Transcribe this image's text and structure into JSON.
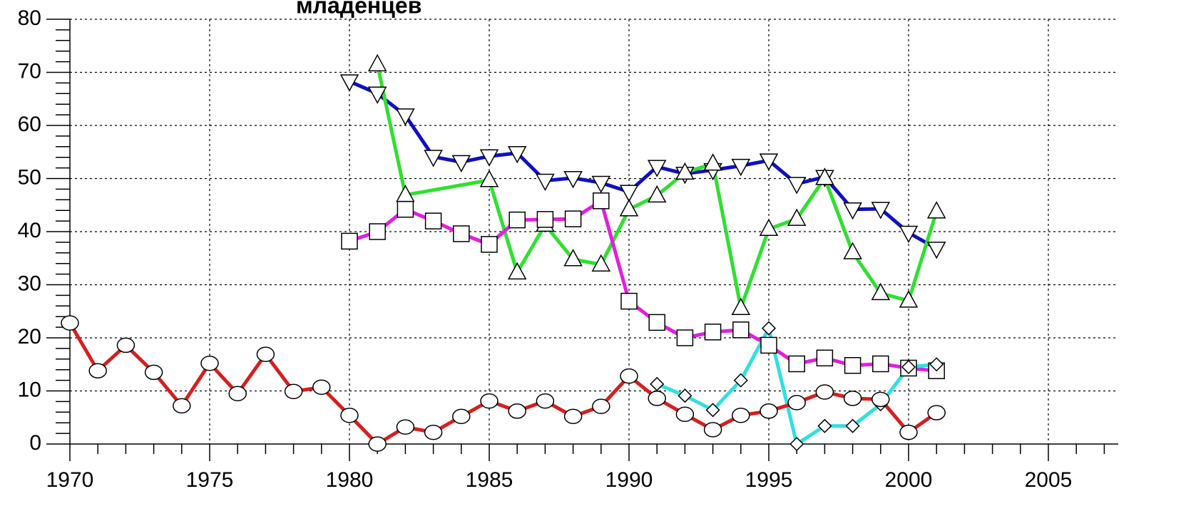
{
  "chart_data": {
    "type": "line",
    "title": "младенцев",
    "xlim": [
      1970,
      2007.5
    ],
    "ylim": [
      0,
      80
    ],
    "xticks": [
      1970,
      1975,
      1980,
      1985,
      1990,
      1995,
      2000,
      2005
    ],
    "yticks": [
      0,
      10,
      20,
      30,
      40,
      50,
      60,
      70,
      80
    ],
    "grid": true,
    "series": [
      {
        "color": "#1010c0",
        "marker": "triangle-down",
        "x": [
          1980,
          1981,
          1982,
          1983,
          1984,
          1985,
          1986,
          1987,
          1988,
          1989,
          1990,
          1991,
          1992,
          1993,
          1994,
          1995,
          1996,
          1997,
          1998,
          1999,
          2000,
          2001
        ],
        "values": [
          68.3,
          66,
          61.9,
          54.1,
          53.1,
          54.2,
          54.8,
          49.6,
          50.1,
          49.2,
          47.5,
          52.2,
          50.9,
          51.6,
          52.4,
          53.4,
          49,
          50.3,
          44.2,
          44.3,
          39.8,
          36.8
        ]
      },
      {
        "color": "#30e030",
        "marker": "triangle-up",
        "x": [
          1981,
          1982,
          1985,
          1986,
          1987,
          1988,
          1989,
          1990,
          1991,
          1992,
          1993,
          1994,
          1995,
          1996,
          1997,
          1998,
          1999,
          2000,
          2001
        ],
        "values": [
          71.5,
          46.9,
          49.7,
          32.3,
          41.3,
          34.8,
          33.8,
          44.2,
          46.8,
          51.1,
          52.8,
          25.6,
          40.5,
          42.4,
          50.1,
          36.1,
          28.4,
          27,
          43.8
        ]
      },
      {
        "color": "#e020e0",
        "marker": "square",
        "x": [
          1980,
          1981,
          1982,
          1983,
          1984,
          1985,
          1986,
          1987,
          1988,
          1989,
          1990,
          1991,
          1992,
          1993,
          1994,
          1995,
          1996,
          1997,
          1998,
          1999,
          2000,
          2001
        ],
        "values": [
          38.2,
          40,
          44.2,
          42,
          39.6,
          37.6,
          42.2,
          42.3,
          42.4,
          45.8,
          26.9,
          22.9,
          20,
          21.1,
          21.5,
          18.6,
          15.1,
          16.2,
          14.8,
          15.1,
          14.3,
          13.8
        ]
      },
      {
        "color": "#30e0e0",
        "marker": "diamond",
        "x": [
          1991,
          1992,
          1993,
          1994,
          1995,
          1996,
          1997,
          1998,
          1999,
          2000,
          2001
        ],
        "values": [
          11.3,
          9.1,
          6.4,
          12,
          21.8,
          0,
          3.4,
          3.4,
          7.5,
          14.5,
          15
        ]
      },
      {
        "color": "#d42020",
        "marker": "circle",
        "x": [
          1970,
          1971,
          1972,
          1973,
          1974,
          1975,
          1976,
          1977,
          1978,
          1979,
          1980,
          1981,
          1982,
          1983,
          1984,
          1985,
          1986,
          1987,
          1988,
          1989,
          1990,
          1991,
          1992,
          1993,
          1994,
          1995,
          1996,
          1997,
          1998,
          1999,
          2000,
          2001
        ],
        "values": [
          22.8,
          13.8,
          18.6,
          13.5,
          7.2,
          15.2,
          9.5,
          16.9,
          9.9,
          10.7,
          5.4,
          0,
          3.2,
          2.2,
          5.2,
          8.1,
          6.2,
          8.1,
          5.2,
          7.1,
          12.8,
          8.6,
          5.6,
          2.7,
          5.4,
          6.2,
          7.8,
          9.8,
          8.6,
          8.4,
          2.2,
          5.9
        ]
      }
    ]
  }
}
